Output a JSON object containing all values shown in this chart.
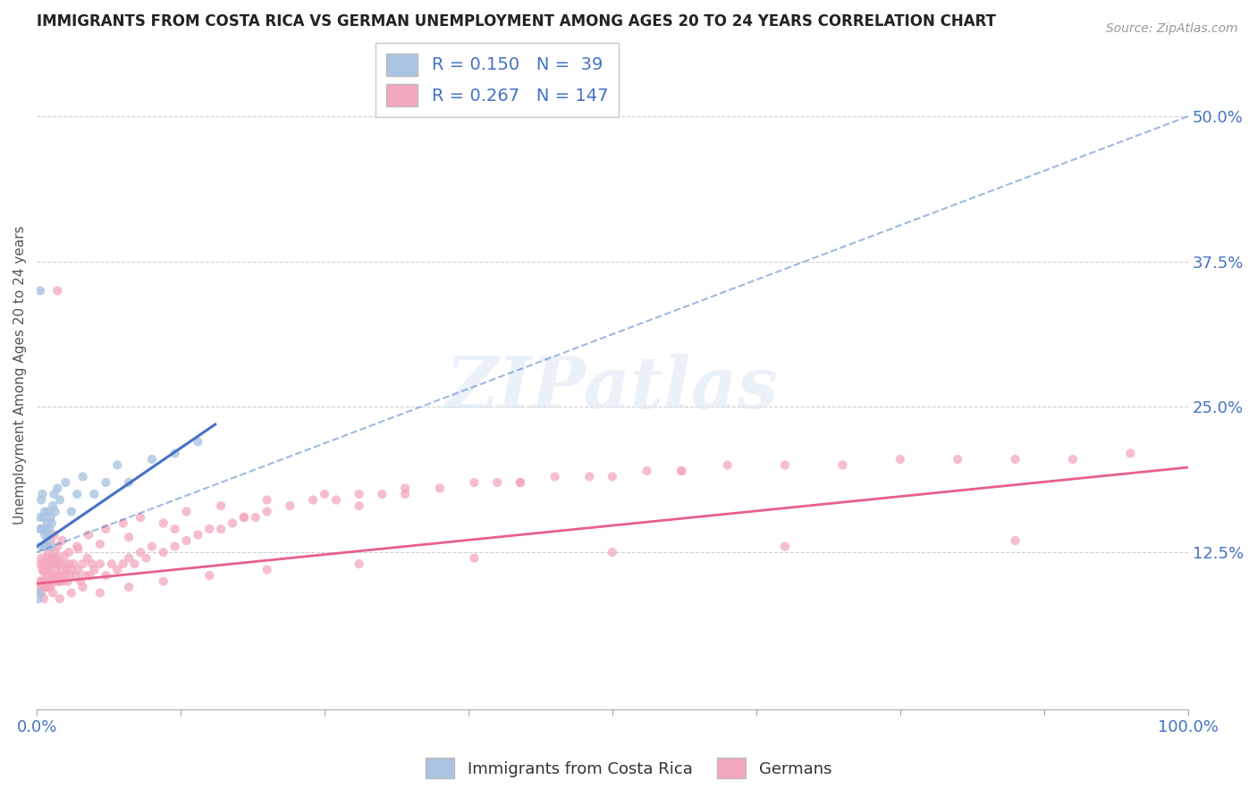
{
  "title": "IMMIGRANTS FROM COSTA RICA VS GERMAN UNEMPLOYMENT AMONG AGES 20 TO 24 YEARS CORRELATION CHART",
  "source": "Source: ZipAtlas.com",
  "ylabel": "Unemployment Among Ages 20 to 24 years",
  "right_yticks": [
    0.125,
    0.25,
    0.375,
    0.5
  ],
  "right_yticklabels": [
    "12.5%",
    "25.0%",
    "37.5%",
    "50.0%"
  ],
  "legend_blue_label": "R = 0.150   N =  39",
  "legend_pink_label": "R = 0.267   N = 147",
  "legend_label_blue": "Immigrants from Costa Rica",
  "legend_label_pink": "Germans",
  "blue_color": "#aac4e2",
  "pink_color": "#f4a8bc",
  "blue_line_color": "#4472c4",
  "pink_line_color": "#e8608a",
  "blue_scatter": {
    "x": [
      0.001,
      0.002,
      0.003,
      0.003,
      0.004,
      0.004,
      0.005,
      0.005,
      0.006,
      0.006,
      0.007,
      0.007,
      0.008,
      0.008,
      0.009,
      0.009,
      0.01,
      0.01,
      0.011,
      0.012,
      0.012,
      0.013,
      0.014,
      0.015,
      0.016,
      0.018,
      0.02,
      0.025,
      0.03,
      0.035,
      0.04,
      0.05,
      0.06,
      0.07,
      0.08,
      0.1,
      0.12,
      0.14,
      0.003
    ],
    "y": [
      0.085,
      0.09,
      0.145,
      0.155,
      0.13,
      0.17,
      0.145,
      0.175,
      0.13,
      0.155,
      0.14,
      0.16,
      0.13,
      0.145,
      0.135,
      0.15,
      0.14,
      0.16,
      0.145,
      0.13,
      0.155,
      0.15,
      0.165,
      0.175,
      0.16,
      0.18,
      0.17,
      0.185,
      0.16,
      0.175,
      0.19,
      0.175,
      0.185,
      0.2,
      0.185,
      0.205,
      0.21,
      0.22,
      0.35
    ]
  },
  "pink_scatter": {
    "x": [
      0.002,
      0.003,
      0.003,
      0.004,
      0.004,
      0.005,
      0.005,
      0.006,
      0.006,
      0.007,
      0.007,
      0.008,
      0.008,
      0.009,
      0.009,
      0.01,
      0.01,
      0.011,
      0.011,
      0.012,
      0.012,
      0.013,
      0.013,
      0.014,
      0.014,
      0.015,
      0.015,
      0.016,
      0.016,
      0.017,
      0.017,
      0.018,
      0.018,
      0.019,
      0.019,
      0.02,
      0.02,
      0.021,
      0.022,
      0.023,
      0.024,
      0.025,
      0.026,
      0.027,
      0.028,
      0.029,
      0.03,
      0.032,
      0.034,
      0.036,
      0.038,
      0.04,
      0.042,
      0.044,
      0.046,
      0.048,
      0.05,
      0.055,
      0.06,
      0.065,
      0.07,
      0.075,
      0.08,
      0.085,
      0.09,
      0.095,
      0.1,
      0.11,
      0.12,
      0.13,
      0.14,
      0.15,
      0.16,
      0.17,
      0.18,
      0.19,
      0.2,
      0.22,
      0.24,
      0.26,
      0.28,
      0.3,
      0.32,
      0.35,
      0.38,
      0.4,
      0.42,
      0.45,
      0.48,
      0.5,
      0.53,
      0.56,
      0.6,
      0.65,
      0.7,
      0.75,
      0.8,
      0.85,
      0.9,
      0.95,
      0.008,
      0.01,
      0.012,
      0.015,
      0.018,
      0.022,
      0.028,
      0.035,
      0.045,
      0.06,
      0.075,
      0.09,
      0.11,
      0.13,
      0.16,
      0.2,
      0.25,
      0.32,
      0.42,
      0.56,
      0.004,
      0.006,
      0.009,
      0.014,
      0.02,
      0.03,
      0.04,
      0.055,
      0.08,
      0.11,
      0.15,
      0.2,
      0.28,
      0.38,
      0.5,
      0.65,
      0.85,
      0.006,
      0.01,
      0.016,
      0.024,
      0.036,
      0.055,
      0.08,
      0.12,
      0.18,
      0.28,
      0.018
    ],
    "y": [
      0.095,
      0.1,
      0.115,
      0.1,
      0.12,
      0.095,
      0.11,
      0.1,
      0.115,
      0.095,
      0.11,
      0.1,
      0.115,
      0.105,
      0.12,
      0.095,
      0.11,
      0.1,
      0.12,
      0.095,
      0.115,
      0.105,
      0.12,
      0.1,
      0.115,
      0.105,
      0.12,
      0.11,
      0.125,
      0.1,
      0.115,
      0.105,
      0.12,
      0.1,
      0.115,
      0.1,
      0.115,
      0.105,
      0.11,
      0.1,
      0.115,
      0.105,
      0.11,
      0.1,
      0.115,
      0.105,
      0.11,
      0.115,
      0.105,
      0.11,
      0.1,
      0.115,
      0.105,
      0.12,
      0.105,
      0.115,
      0.11,
      0.115,
      0.105,
      0.115,
      0.11,
      0.115,
      0.12,
      0.115,
      0.125,
      0.12,
      0.13,
      0.125,
      0.13,
      0.135,
      0.14,
      0.145,
      0.145,
      0.15,
      0.155,
      0.155,
      0.16,
      0.165,
      0.17,
      0.17,
      0.175,
      0.175,
      0.175,
      0.18,
      0.185,
      0.185,
      0.185,
      0.19,
      0.19,
      0.19,
      0.195,
      0.195,
      0.2,
      0.2,
      0.2,
      0.205,
      0.205,
      0.205,
      0.205,
      0.21,
      0.13,
      0.125,
      0.135,
      0.14,
      0.13,
      0.135,
      0.125,
      0.13,
      0.14,
      0.145,
      0.15,
      0.155,
      0.15,
      0.16,
      0.165,
      0.17,
      0.175,
      0.18,
      0.185,
      0.195,
      0.09,
      0.085,
      0.095,
      0.09,
      0.085,
      0.09,
      0.095,
      0.09,
      0.095,
      0.1,
      0.105,
      0.11,
      0.115,
      0.12,
      0.125,
      0.13,
      0.135,
      0.108,
      0.112,
      0.118,
      0.122,
      0.128,
      0.132,
      0.138,
      0.145,
      0.155,
      0.165,
      0.35
    ]
  },
  "blue_solid_line": {
    "x": [
      0.0,
      0.155
    ],
    "y": [
      0.13,
      0.235
    ]
  },
  "blue_dashed_line": {
    "x": [
      0.0,
      1.0
    ],
    "y": [
      0.125,
      0.5
    ]
  },
  "pink_solid_line": {
    "x": [
      0.0,
      1.0
    ],
    "y": [
      0.098,
      0.198
    ]
  },
  "xlim": [
    0.0,
    1.0
  ],
  "ylim": [
    -0.01,
    0.565
  ],
  "background_color": "#ffffff",
  "watermark_text": "ZIPatlas",
  "grid_color": "#d0d0d0",
  "title_fontsize": 12,
  "axis_fontsize": 12
}
